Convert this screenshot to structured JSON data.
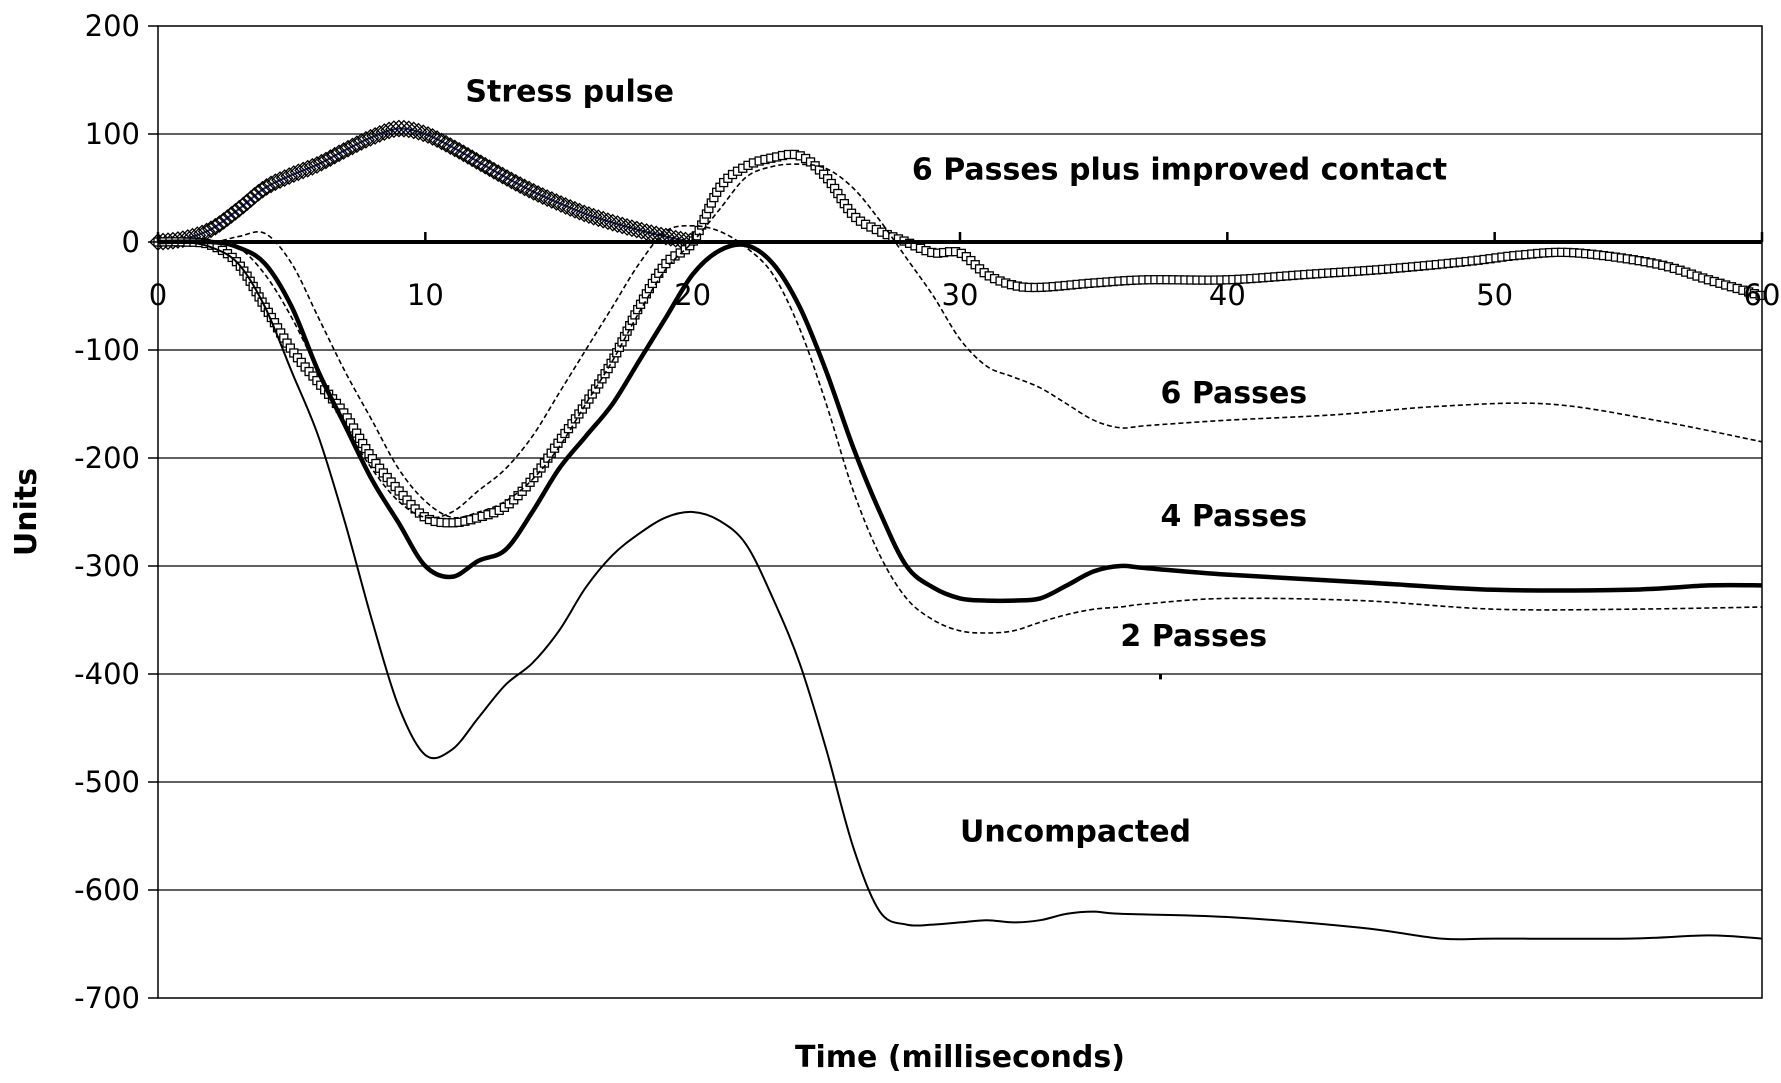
{
  "chart_data": {
    "type": "line",
    "title": "",
    "xlabel": "Time (milliseconds)",
    "ylabel": "Units",
    "xlim": [
      0,
      60
    ],
    "ylim": [
      -700,
      200
    ],
    "xticks": [
      0,
      10,
      20,
      30,
      40,
      50,
      60
    ],
    "yticks": [
      200,
      100,
      0,
      -100,
      -200,
      -300,
      -400,
      -500,
      -600,
      -700
    ],
    "grid": "horizontal",
    "annotations": [
      {
        "text": "Stress pulse",
        "x": 11.5,
        "y": 130
      },
      {
        "text": "6 Passes plus improved contact",
        "x": 28.2,
        "y": 58
      },
      {
        "text": "6 Passes",
        "x": 37.5,
        "y": -149
      },
      {
        "text": "4 Passes",
        "x": 37.5,
        "y": -263
      },
      {
        "text": "2 Passes",
        "x": 36.0,
        "y": -374
      },
      {
        "text": "Uncompacted",
        "x": 30.0,
        "y": -555
      }
    ],
    "series": [
      {
        "name": "Stress pulse",
        "style": "diamond",
        "x": [
          0,
          1,
          2,
          3,
          4,
          5,
          6,
          7,
          8,
          9,
          10,
          11,
          12,
          13,
          14,
          15,
          16,
          17,
          18,
          19,
          20
        ],
        "y": [
          0,
          3,
          12,
          30,
          50,
          62,
          72,
          85,
          97,
          105,
          100,
          88,
          74,
          60,
          47,
          36,
          26,
          18,
          11,
          5,
          0
        ]
      },
      {
        "name": "6 Passes plus improved contact",
        "style": "square",
        "x": [
          0,
          1,
          2,
          3,
          4,
          5,
          6,
          7,
          8,
          9,
          10,
          11,
          12,
          13,
          14,
          15,
          16,
          17,
          18,
          19,
          20,
          21,
          22,
          23,
          24,
          25,
          26,
          27,
          28,
          29,
          30,
          31,
          32,
          33,
          35,
          37,
          40,
          43,
          46,
          49,
          51,
          53,
          56,
          58,
          60
        ],
        "y": [
          0,
          0,
          -3,
          -20,
          -60,
          -100,
          -130,
          -160,
          -200,
          -230,
          -255,
          -260,
          -255,
          -245,
          -220,
          -185,
          -150,
          -110,
          -60,
          -20,
          0,
          50,
          70,
          78,
          80,
          60,
          25,
          10,
          0,
          -10,
          -10,
          -30,
          -40,
          -42,
          -38,
          -35,
          -35,
          -30,
          -25,
          -18,
          -12,
          -10,
          -20,
          -35,
          -50
        ]
      },
      {
        "name": "6 Passes",
        "style": "dashed",
        "x": [
          0,
          2,
          3,
          4,
          5,
          6,
          7,
          8,
          9,
          10,
          11,
          12,
          13,
          14,
          15,
          16,
          17,
          18,
          19,
          20,
          21,
          22,
          23,
          24,
          25,
          26,
          27,
          28,
          29,
          30,
          31,
          32,
          33,
          34,
          35,
          36,
          37,
          40,
          44,
          48,
          52,
          56,
          60
        ],
        "y": [
          0,
          0,
          5,
          8,
          -20,
          -70,
          -120,
          -165,
          -210,
          -240,
          -255,
          -250,
          -240,
          -220,
          -190,
          -150,
          -110,
          -65,
          -25,
          0,
          30,
          60,
          70,
          72,
          68,
          50,
          20,
          -15,
          -50,
          -90,
          -115,
          -125,
          -135,
          -150,
          -165,
          -172,
          -170,
          -165,
          -160,
          -152,
          -150,
          -165,
          -185
        ]
      },
      {
        "name": "4 Passes",
        "style": "thick",
        "x": [
          0,
          2,
          3,
          4,
          5,
          6,
          7,
          8,
          9,
          10,
          11,
          12,
          13,
          14,
          15,
          16,
          17,
          18,
          19,
          20,
          21,
          22,
          23,
          24,
          25,
          26,
          27,
          28,
          29,
          30,
          31,
          32,
          33,
          34,
          35,
          36,
          37,
          40,
          45,
          50,
          55,
          58,
          60
        ],
        "y": [
          0,
          0,
          -5,
          -20,
          -60,
          -120,
          -170,
          -220,
          -260,
          -300,
          -310,
          -295,
          -285,
          -250,
          -210,
          -180,
          -150,
          -110,
          -70,
          -30,
          -8,
          -3,
          -20,
          -60,
          -120,
          -190,
          -250,
          -300,
          -320,
          -330,
          -332,
          -332,
          -330,
          -318,
          -305,
          -300,
          -302,
          -308,
          -315,
          -322,
          -322,
          -318,
          -318
        ]
      },
      {
        "name": "2 Passes",
        "style": "dashed",
        "x": [
          0,
          2,
          3,
          4,
          5,
          6,
          7,
          8,
          9,
          10,
          11,
          12,
          13,
          14,
          15,
          16,
          17,
          18,
          19,
          20,
          21,
          22,
          23,
          24,
          25,
          26,
          27,
          28,
          29,
          30,
          31,
          32,
          33,
          34,
          35,
          36,
          37,
          40,
          45,
          50,
          55,
          60
        ],
        "y": [
          0,
          0,
          -5,
          -30,
          -70,
          -120,
          -170,
          -210,
          -240,
          -255,
          -250,
          -230,
          -210,
          -180,
          -140,
          -100,
          -60,
          -20,
          10,
          15,
          10,
          -5,
          -30,
          -80,
          -150,
          -230,
          -290,
          -330,
          -350,
          -360,
          -362,
          -360,
          -352,
          -345,
          -340,
          -338,
          -335,
          -330,
          -332,
          -340,
          -340,
          -338
        ]
      },
      {
        "name": "Uncompacted",
        "style": "thin",
        "x": [
          0,
          1,
          2,
          3,
          4,
          5,
          6,
          7,
          8,
          9,
          10,
          11,
          12,
          13,
          14,
          15,
          16,
          17,
          18,
          19,
          20,
          21,
          22,
          23,
          24,
          25,
          26,
          27,
          28,
          29,
          30,
          31,
          32,
          33,
          34,
          35,
          36,
          40,
          45,
          48,
          50,
          55,
          58,
          60
        ],
        "y": [
          0,
          0,
          -5,
          -20,
          -60,
          -120,
          -180,
          -260,
          -350,
          -430,
          -475,
          -470,
          -440,
          -410,
          -390,
          -360,
          -320,
          -290,
          -270,
          -255,
          -250,
          -258,
          -280,
          -330,
          -390,
          -470,
          -560,
          -620,
          -632,
          -632,
          -630,
          -628,
          -630,
          -628,
          -622,
          -620,
          -622,
          -625,
          -635,
          -645,
          -645,
          -645,
          -642,
          -645
        ]
      }
    ]
  }
}
